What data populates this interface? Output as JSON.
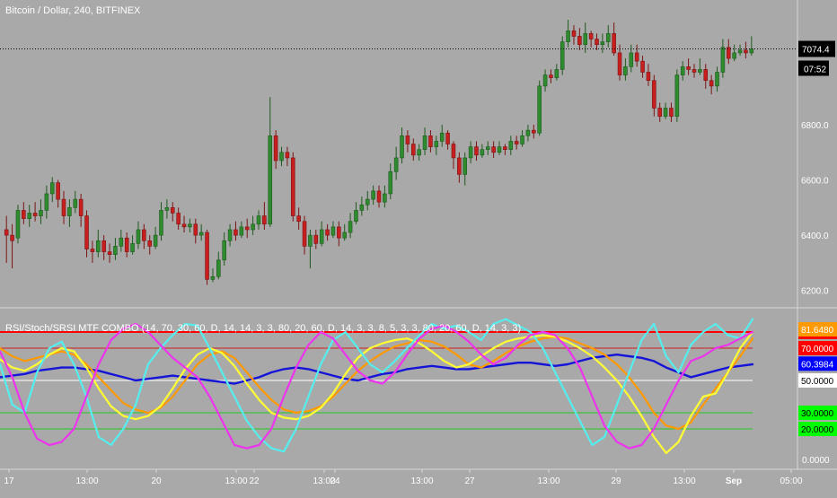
{
  "chart_data": [
    {
      "type": "candlestick",
      "title": "Bitcoin / Dollar, 240, BITFINEX",
      "price_scale": {
        "ylim": [
          6160,
          7180
        ],
        "ticks": [
          "6200.0",
          "6400.0",
          "6600.0",
          "6800.0"
        ]
      },
      "last_price": {
        "value": 7074.4,
        "label": "7074.4",
        "countdown": "07:52"
      },
      "x_ticks": [
        "17",
        "13:00",
        "20",
        "13:00",
        "22",
        "13:00",
        "24",
        "13:00",
        "27",
        "13:00",
        "29",
        "13:00",
        "Sep",
        "05:00"
      ],
      "candles": [
        [
          6420,
          6400,
          6470,
          6300
        ],
        [
          6400,
          6380,
          6440,
          6280
        ],
        [
          6390,
          6490,
          6510,
          6370
        ],
        [
          6490,
          6460,
          6520,
          6440
        ],
        [
          6460,
          6480,
          6510,
          6430
        ],
        [
          6480,
          6470,
          6520,
          6450
        ],
        [
          6470,
          6490,
          6530,
          6440
        ],
        [
          6490,
          6550,
          6580,
          6460
        ],
        [
          6550,
          6590,
          6610,
          6520
        ],
        [
          6590,
          6530,
          6600,
          6500
        ],
        [
          6530,
          6470,
          6560,
          6440
        ],
        [
          6470,
          6500,
          6530,
          6430
        ],
        [
          6500,
          6530,
          6560,
          6480
        ],
        [
          6530,
          6470,
          6550,
          6430
        ],
        [
          6470,
          6350,
          6490,
          6320
        ],
        [
          6350,
          6340,
          6380,
          6300
        ],
        [
          6340,
          6380,
          6420,
          6320
        ],
        [
          6380,
          6340,
          6400,
          6310
        ],
        [
          6340,
          6330,
          6370,
          6300
        ],
        [
          6330,
          6360,
          6390,
          6310
        ],
        [
          6360,
          6390,
          6420,
          6340
        ],
        [
          6390,
          6340,
          6410,
          6320
        ],
        [
          6340,
          6370,
          6400,
          6330
        ],
        [
          6370,
          6420,
          6450,
          6350
        ],
        [
          6420,
          6380,
          6440,
          6350
        ],
        [
          6380,
          6360,
          6400,
          6330
        ],
        [
          6360,
          6400,
          6430,
          6350
        ],
        [
          6400,
          6490,
          6520,
          6380
        ],
        [
          6490,
          6500,
          6530,
          6460
        ],
        [
          6500,
          6480,
          6520,
          6450
        ],
        [
          6480,
          6440,
          6500,
          6420
        ],
        [
          6440,
          6430,
          6470,
          6410
        ],
        [
          6430,
          6440,
          6460,
          6410
        ],
        [
          6440,
          6400,
          6460,
          6370
        ],
        [
          6400,
          6410,
          6440,
          6380
        ],
        [
          6410,
          6240,
          6420,
          6220
        ],
        [
          6240,
          6250,
          6280,
          6230
        ],
        [
          6250,
          6310,
          6340,
          6240
        ],
        [
          6310,
          6380,
          6410,
          6290
        ],
        [
          6380,
          6420,
          6440,
          6360
        ],
        [
          6420,
          6400,
          6450,
          6380
        ],
        [
          6400,
          6430,
          6450,
          6390
        ],
        [
          6430,
          6420,
          6460,
          6390
        ],
        [
          6420,
          6440,
          6470,
          6400
        ],
        [
          6440,
          6470,
          6490,
          6420
        ],
        [
          6470,
          6440,
          6520,
          6420
        ],
        [
          6440,
          6760,
          6900,
          6430
        ],
        [
          6760,
          6670,
          6780,
          6640
        ],
        [
          6670,
          6700,
          6720,
          6650
        ],
        [
          6700,
          6680,
          6720,
          6650
        ],
        [
          6680,
          6470,
          6700,
          6450
        ],
        [
          6470,
          6450,
          6500,
          6420
        ],
        [
          6450,
          6360,
          6470,
          6330
        ],
        [
          6360,
          6400,
          6420,
          6280
        ],
        [
          6400,
          6370,
          6420,
          6350
        ],
        [
          6370,
          6420,
          6450,
          6360
        ],
        [
          6420,
          6400,
          6440,
          6380
        ],
        [
          6400,
          6430,
          6450,
          6390
        ],
        [
          6430,
          6390,
          6450,
          6360
        ],
        [
          6390,
          6410,
          6440,
          6380
        ],
        [
          6410,
          6450,
          6480,
          6390
        ],
        [
          6450,
          6490,
          6520,
          6440
        ],
        [
          6490,
          6510,
          6540,
          6470
        ],
        [
          6510,
          6530,
          6560,
          6490
        ],
        [
          6530,
          6560,
          6580,
          6510
        ],
        [
          6560,
          6520,
          6580,
          6500
        ],
        [
          6520,
          6550,
          6580,
          6500
        ],
        [
          6550,
          6630,
          6660,
          6530
        ],
        [
          6630,
          6680,
          6720,
          6600
        ],
        [
          6680,
          6760,
          6790,
          6660
        ],
        [
          6760,
          6730,
          6780,
          6700
        ],
        [
          6730,
          6690,
          6750,
          6670
        ],
        [
          6690,
          6710,
          6730,
          6670
        ],
        [
          6710,
          6760,
          6790,
          6690
        ],
        [
          6760,
          6720,
          6780,
          6700
        ],
        [
          6720,
          6740,
          6760,
          6690
        ],
        [
          6740,
          6770,
          6800,
          6720
        ],
        [
          6770,
          6730,
          6780,
          6710
        ],
        [
          6730,
          6680,
          6740,
          6640
        ],
        [
          6680,
          6620,
          6700,
          6590
        ],
        [
          6620,
          6680,
          6700,
          6580
        ],
        [
          6680,
          6720,
          6740,
          6660
        ],
        [
          6720,
          6690,
          6740,
          6670
        ],
        [
          6690,
          6710,
          6730,
          6680
        ],
        [
          6710,
          6720,
          6740,
          6690
        ],
        [
          6720,
          6700,
          6740,
          6680
        ],
        [
          6700,
          6720,
          6740,
          6690
        ],
        [
          6720,
          6710,
          6730,
          6690
        ],
        [
          6710,
          6740,
          6760,
          6690
        ],
        [
          6740,
          6730,
          6760,
          6710
        ],
        [
          6730,
          6760,
          6780,
          6720
        ],
        [
          6760,
          6780,
          6800,
          6740
        ],
        [
          6780,
          6770,
          6800,
          6750
        ],
        [
          6770,
          6940,
          6960,
          6760
        ],
        [
          6940,
          6980,
          7000,
          6920
        ],
        [
          6980,
          6970,
          7000,
          6950
        ],
        [
          6970,
          7000,
          7020,
          6960
        ],
        [
          7000,
          7100,
          7120,
          6980
        ],
        [
          7100,
          7140,
          7180,
          7080
        ],
        [
          7140,
          7120,
          7160,
          7090
        ],
        [
          7120,
          7090,
          7150,
          7070
        ],
        [
          7090,
          7130,
          7170,
          7060
        ],
        [
          7130,
          7110,
          7140,
          7080
        ],
        [
          7110,
          7090,
          7130,
          7070
        ],
        [
          7090,
          7100,
          7130,
          7060
        ],
        [
          7100,
          7130,
          7160,
          7080
        ],
        [
          7130,
          7060,
          7170,
          7050
        ],
        [
          7060,
          6980,
          7090,
          6960
        ],
        [
          6980,
          7010,
          7040,
          6960
        ],
        [
          7010,
          7060,
          7090,
          6990
        ],
        [
          7060,
          7030,
          7090,
          7010
        ],
        [
          7030,
          6990,
          7050,
          6970
        ],
        [
          6990,
          6960,
          7020,
          6940
        ],
        [
          6960,
          6860,
          6980,
          6830
        ],
        [
          6860,
          6830,
          6880,
          6810
        ],
        [
          6830,
          6860,
          6880,
          6820
        ],
        [
          6860,
          6830,
          6880,
          6810
        ],
        [
          6830,
          6980,
          7000,
          6810
        ],
        [
          6980,
          7010,
          7030,
          6960
        ],
        [
          7010,
          7000,
          7040,
          6980
        ],
        [
          7000,
          6990,
          7020,
          6970
        ],
        [
          6990,
          7000,
          7040,
          6980
        ],
        [
          7000,
          6960,
          7020,
          6930
        ],
        [
          6960,
          6940,
          6980,
          6910
        ],
        [
          6940,
          6990,
          7010,
          6920
        ],
        [
          6990,
          7080,
          7110,
          6970
        ],
        [
          7080,
          7040,
          7110,
          7020
        ],
        [
          7040,
          7060,
          7090,
          7030
        ],
        [
          7060,
          7070,
          7090,
          7050
        ],
        [
          7070,
          7060,
          7100,
          7040
        ],
        [
          7060,
          7074.4,
          7120,
          7050
        ]
      ]
    },
    {
      "type": "line",
      "title": "RSI/Stoch/SRSI MTF COMBO (14, 70, 30, 60, D, 14, 14, 3, 3, 80, 20, 60, D, 14, 3, 3, 8, 5, 3, 3, 80, 20, 60, D, 14, 3, 3)",
      "ylim": [
        0,
        90
      ],
      "ticks": [
        "0.0000"
      ],
      "levels": [
        {
          "value": 80,
          "label": "80.0000",
          "color": "#ff0000",
          "label_bg": "#ff0000"
        },
        {
          "value": 70,
          "label": "70.0000",
          "color": "#cc2020",
          "label_bg": "#ff0000"
        },
        {
          "value": 50,
          "label": "50.0000",
          "color": "#ffffff",
          "label_bg": "#ffffff",
          "label_color": "#000000"
        },
        {
          "value": 30,
          "label": "30.0000",
          "color": "#22cc22",
          "label_bg": "#00ff00",
          "label_color": "#000000"
        },
        {
          "value": 20,
          "label": "20.0000",
          "color": "#22cc22",
          "label_bg": "#00ff00",
          "label_color": "#000000"
        }
      ],
      "value_labels": [
        {
          "value": 81.648,
          "label": "81.6480",
          "bg": "#ff9900",
          "color": "#ffffff"
        },
        {
          "value": 60.3984,
          "label": "60.3984",
          "bg": "#0000ff",
          "color": "#ffffff"
        }
      ],
      "series": [
        {
          "color": "#1515d8",
          "width": 2.4,
          "values": [
            52,
            53,
            54,
            56,
            57,
            58,
            58,
            57,
            56,
            54,
            52,
            50,
            51,
            52,
            53,
            52,
            51,
            50,
            49,
            48,
            50,
            52,
            55,
            57,
            58,
            57,
            55,
            53,
            51,
            50,
            52,
            54,
            55,
            57,
            58,
            59,
            58,
            57,
            57,
            58,
            59,
            60,
            61,
            61,
            60,
            59,
            60,
            62,
            64,
            65,
            66,
            65,
            64,
            62,
            58,
            55,
            52,
            54,
            56,
            58,
            59,
            60
          ]
        },
        {
          "color": "#ff9900",
          "width": 2.2,
          "values": [
            70,
            65,
            62,
            64,
            66,
            68,
            66,
            60,
            52,
            44,
            36,
            32,
            30,
            33,
            40,
            50,
            60,
            66,
            68,
            64,
            55,
            46,
            38,
            32,
            30,
            31,
            34,
            40,
            48,
            56,
            62,
            67,
            71,
            73,
            75,
            74,
            71,
            66,
            60,
            58,
            62,
            67,
            71,
            74,
            76,
            77,
            76,
            73,
            70,
            66,
            60,
            52,
            42,
            30,
            22,
            20,
            24,
            35,
            45,
            55,
            65,
            76
          ]
        },
        {
          "color": "#ffff33",
          "width": 2.2,
          "values": [
            63,
            58,
            56,
            60,
            66,
            70,
            68,
            58,
            45,
            34,
            28,
            26,
            28,
            34,
            45,
            57,
            66,
            70,
            67,
            59,
            48,
            38,
            30,
            27,
            26,
            28,
            33,
            42,
            54,
            64,
            70,
            73,
            75,
            76,
            73,
            68,
            62,
            58,
            60,
            65,
            70,
            74,
            76,
            77,
            78,
            77,
            74,
            70,
            65,
            58,
            50,
            40,
            28,
            15,
            5,
            12,
            28,
            40,
            42,
            55,
            70,
            80
          ]
        },
        {
          "color": "#55eeee",
          "width": 2.2,
          "values": [
            60,
            35,
            30,
            55,
            70,
            74,
            60,
            40,
            15,
            10,
            20,
            35,
            60,
            70,
            78,
            85,
            84,
            70,
            55,
            40,
            25,
            15,
            8,
            6,
            20,
            40,
            60,
            75,
            80,
            70,
            60,
            55,
            62,
            70,
            78,
            85,
            82,
            84,
            80,
            75,
            85,
            88,
            84,
            80,
            70,
            55,
            40,
            25,
            10,
            15,
            35,
            55,
            75,
            85,
            65,
            55,
            72,
            80,
            85,
            78,
            76,
            88
          ]
        },
        {
          "color": "#ee33ee",
          "width": 2.2,
          "values": [
            68,
            52,
            30,
            14,
            10,
            12,
            20,
            40,
            60,
            75,
            82,
            85,
            80,
            72,
            64,
            58,
            52,
            40,
            25,
            10,
            8,
            10,
            20,
            40,
            58,
            72,
            80,
            76,
            66,
            56,
            50,
            48,
            55,
            66,
            76,
            82,
            84,
            80,
            74,
            66,
            60,
            64,
            72,
            78,
            80,
            78,
            70,
            58,
            40,
            22,
            12,
            8,
            10,
            20,
            35,
            50,
            62,
            65,
            70,
            72,
            76,
            80
          ]
        }
      ]
    }
  ]
}
